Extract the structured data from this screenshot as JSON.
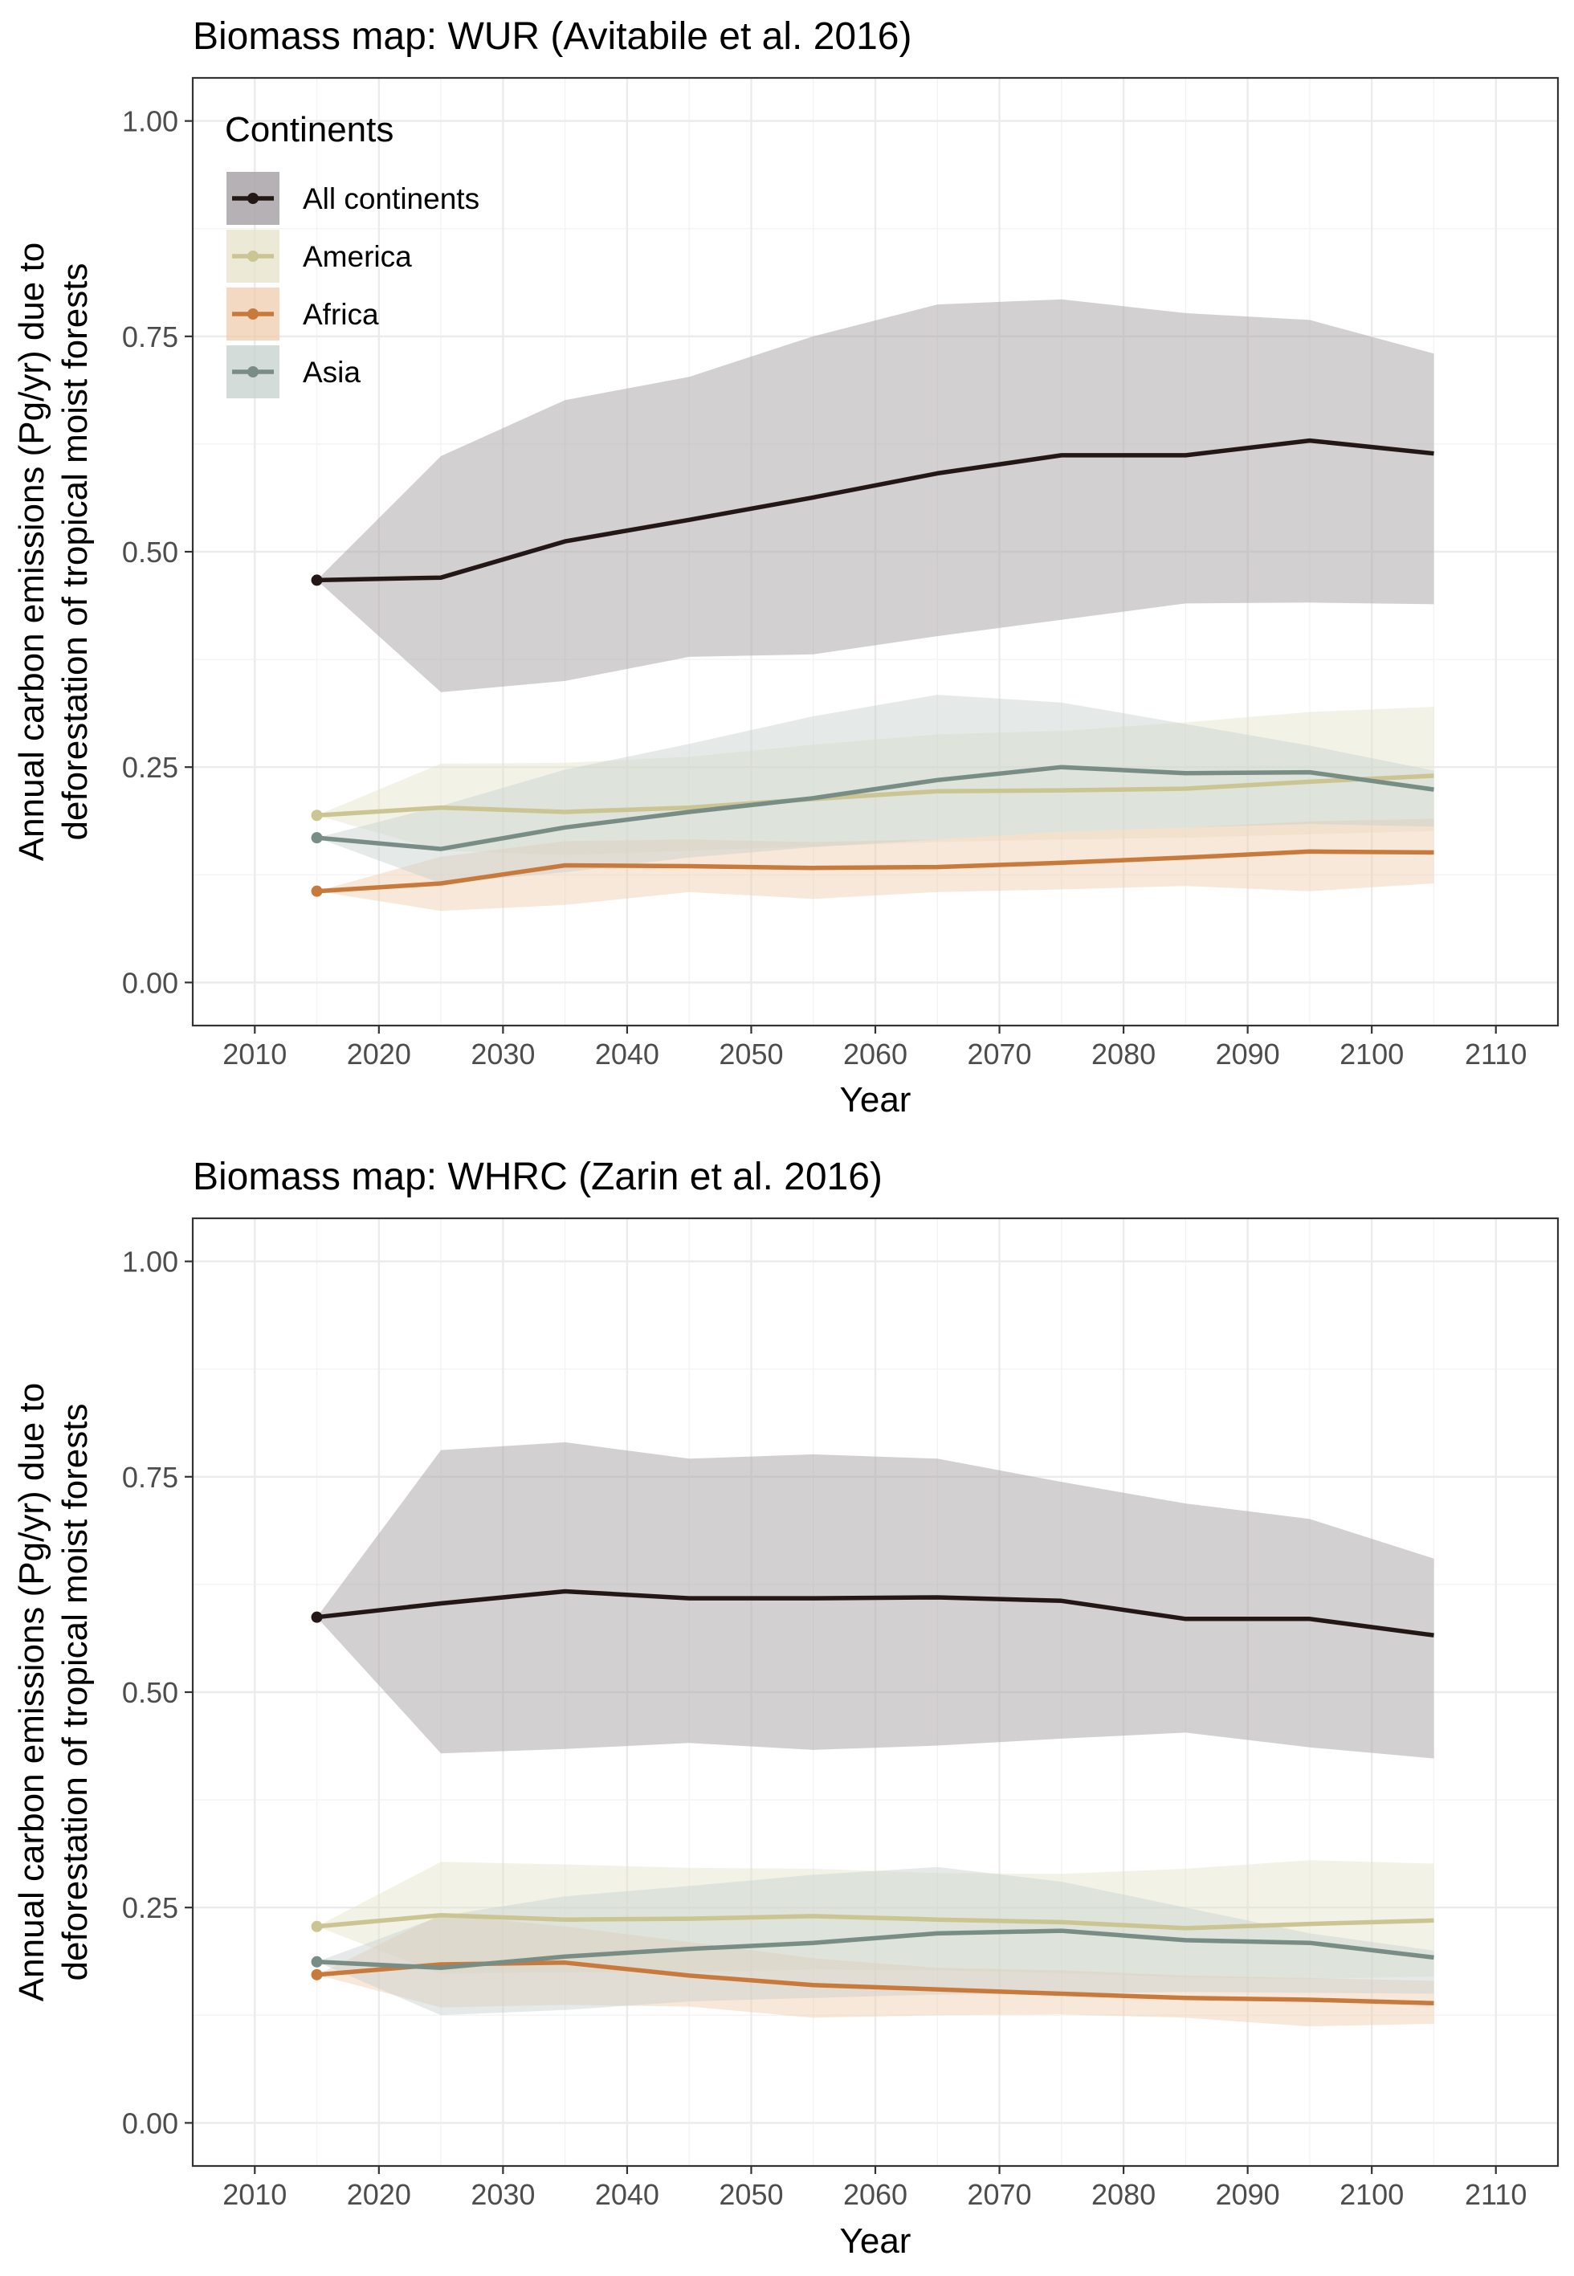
{
  "colors": {
    "All continents": "#231815",
    "America": "#cbc593",
    "Africa": "#c87a3d",
    "Asia": "#788d85",
    "All continents_band": "#aea9ad",
    "America_band": "#e5e3c9",
    "Africa_band": "#efcbad",
    "Asia_band": "#c6d0cd"
  },
  "legend": {
    "title": "Continents",
    "position": "top-left inside",
    "entries": [
      "All continents",
      "America",
      "Africa",
      "Asia"
    ]
  },
  "chart_data": [
    {
      "type": "line",
      "title": "Biomass map: WUR (Avitabile et al. 2016)",
      "xlabel": "Year",
      "ylabel": [
        "Annual carbon emissions (Pg/yr) due to",
        "deforestation of tropical moist forests"
      ],
      "xlim": [
        2005,
        2115
      ],
      "ylim": [
        -0.05,
        1.05
      ],
      "xticks": [
        2010,
        2020,
        2030,
        2040,
        2050,
        2060,
        2070,
        2080,
        2090,
        2100,
        2110
      ],
      "yticks": [
        0.0,
        0.25,
        0.5,
        0.75,
        1.0
      ],
      "ytick_labels": [
        "0.00",
        "0.25",
        "0.50",
        "0.75",
        "1.00"
      ],
      "grid": true,
      "show_legend": true,
      "x": [
        2015,
        2025,
        2035,
        2045,
        2055,
        2065,
        2075,
        2085,
        2095,
        2105
      ],
      "series": [
        {
          "name": "All continents",
          "values": [
            0.467,
            0.47,
            0.512,
            0.537,
            0.563,
            0.591,
            0.612,
            0.612,
            0.629,
            0.614
          ],
          "lower": [
            0.467,
            0.337,
            0.35,
            0.378,
            0.381,
            0.402,
            0.421,
            0.44,
            0.441,
            0.439
          ],
          "upper": [
            0.467,
            0.611,
            0.676,
            0.703,
            0.75,
            0.787,
            0.793,
            0.777,
            0.769,
            0.73
          ]
        },
        {
          "name": "America",
          "values": [
            0.194,
            0.203,
            0.198,
            0.203,
            0.213,
            0.222,
            0.223,
            0.225,
            0.233,
            0.24
          ],
          "lower": [
            0.194,
            0.153,
            0.148,
            0.153,
            0.158,
            0.163,
            0.166,
            0.168,
            0.172,
            0.176
          ],
          "upper": [
            0.194,
            0.254,
            0.255,
            0.262,
            0.276,
            0.288,
            0.292,
            0.302,
            0.314,
            0.32
          ]
        },
        {
          "name": "Africa",
          "values": [
            0.106,
            0.115,
            0.136,
            0.135,
            0.133,
            0.134,
            0.139,
            0.145,
            0.152,
            0.151
          ],
          "lower": [
            0.106,
            0.083,
            0.09,
            0.105,
            0.097,
            0.105,
            0.108,
            0.112,
            0.106,
            0.115
          ],
          "upper": [
            0.106,
            0.146,
            0.164,
            0.166,
            0.163,
            0.166,
            0.175,
            0.18,
            0.187,
            0.19
          ]
        },
        {
          "name": "Asia",
          "values": [
            0.168,
            0.155,
            0.18,
            0.198,
            0.214,
            0.235,
            0.25,
            0.243,
            0.244,
            0.224
          ],
          "lower": [
            0.168,
            0.115,
            0.128,
            0.145,
            0.157,
            0.166,
            0.175,
            0.18,
            0.184,
            0.181
          ],
          "upper": [
            0.168,
            0.205,
            0.247,
            0.277,
            0.309,
            0.334,
            0.325,
            0.3,
            0.275,
            0.246
          ]
        }
      ]
    },
    {
      "type": "line",
      "title": "Biomass map: WHRC (Zarin et al. 2016)",
      "xlabel": "Year",
      "ylabel": [
        "Annual carbon emissions (Pg/yr) due to",
        "deforestation of tropical moist forests"
      ],
      "xlim": [
        2005,
        2115
      ],
      "ylim": [
        -0.05,
        1.05
      ],
      "xticks": [
        2010,
        2020,
        2030,
        2040,
        2050,
        2060,
        2070,
        2080,
        2090,
        2100,
        2110
      ],
      "yticks": [
        0.0,
        0.25,
        0.5,
        0.75,
        1.0
      ],
      "ytick_labels": [
        "0.00",
        "0.25",
        "0.50",
        "0.75",
        "1.00"
      ],
      "grid": true,
      "show_legend": false,
      "x": [
        2015,
        2025,
        2035,
        2045,
        2055,
        2065,
        2075,
        2085,
        2095,
        2105
      ],
      "series": [
        {
          "name": "All continents",
          "values": [
            0.587,
            0.603,
            0.617,
            0.609,
            0.609,
            0.61,
            0.606,
            0.585,
            0.585,
            0.566
          ],
          "lower": [
            0.587,
            0.429,
            0.434,
            0.441,
            0.433,
            0.438,
            0.446,
            0.453,
            0.436,
            0.423
          ],
          "upper": [
            0.587,
            0.781,
            0.79,
            0.771,
            0.776,
            0.771,
            0.744,
            0.719,
            0.701,
            0.655
          ]
        },
        {
          "name": "America",
          "values": [
            0.228,
            0.241,
            0.236,
            0.237,
            0.24,
            0.236,
            0.233,
            0.226,
            0.231,
            0.235
          ],
          "lower": [
            0.228,
            0.173,
            0.175,
            0.175,
            0.178,
            0.177,
            0.174,
            0.169,
            0.167,
            0.17
          ],
          "upper": [
            0.228,
            0.303,
            0.3,
            0.296,
            0.295,
            0.29,
            0.289,
            0.295,
            0.305,
            0.301
          ]
        },
        {
          "name": "Africa",
          "values": [
            0.172,
            0.184,
            0.186,
            0.171,
            0.16,
            0.155,
            0.15,
            0.145,
            0.143,
            0.139
          ],
          "lower": [
            0.172,
            0.134,
            0.137,
            0.135,
            0.122,
            0.125,
            0.126,
            0.122,
            0.112,
            0.115
          ],
          "upper": [
            0.172,
            0.242,
            0.228,
            0.21,
            0.191,
            0.18,
            0.177,
            0.171,
            0.168,
            0.165
          ]
        },
        {
          "name": "Asia",
          "values": [
            0.187,
            0.18,
            0.193,
            0.202,
            0.209,
            0.22,
            0.223,
            0.212,
            0.209,
            0.192
          ],
          "lower": [
            0.187,
            0.125,
            0.131,
            0.141,
            0.145,
            0.149,
            0.15,
            0.152,
            0.151,
            0.15
          ],
          "upper": [
            0.187,
            0.24,
            0.263,
            0.275,
            0.288,
            0.297,
            0.28,
            0.25,
            0.22,
            0.2
          ]
        }
      ]
    }
  ]
}
